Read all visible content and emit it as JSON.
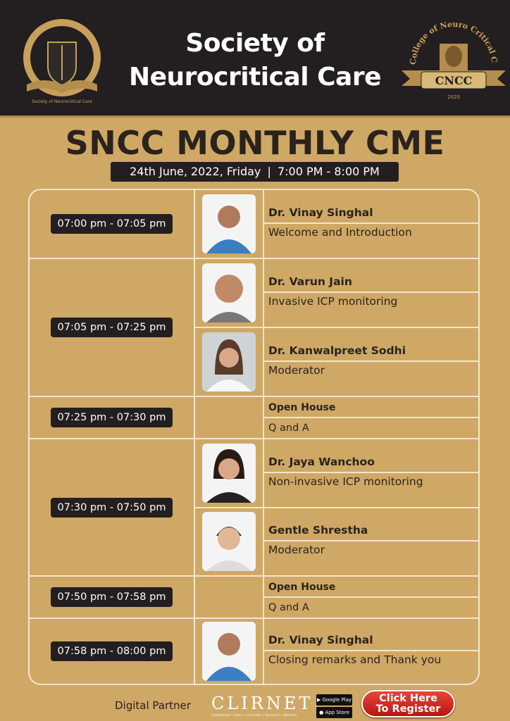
{
  "header": {
    "title_line1": "Society of",
    "title_line2": "Neurocritical Care",
    "left_logo_text": "Society of Neurocritical Care",
    "right_logo_text": "College of Neuro Critical Care",
    "right_logo_abbr": "CNCC",
    "right_logo_year": "2020"
  },
  "event": {
    "title": "SNCC MONTHLY CME",
    "date": "24th June, 2022, Friday",
    "separator": "|",
    "time": "7:00 PM - 8:00 PM"
  },
  "sessions": [
    {
      "time": "07:00 pm - 07:05 pm",
      "items": [
        {
          "name": "Dr. Vinay Singhal",
          "role": "Welcome and Introduction"
        }
      ]
    },
    {
      "time": "07:05 pm - 07:25 pm",
      "items": [
        {
          "name": "Dr. Varun Jain",
          "role": "Invasive ICP monitoring"
        },
        {
          "name": "Dr. Kanwalpreet Sodhi",
          "role": "Moderator"
        }
      ]
    },
    {
      "time": "07:25 pm - 07:30 pm",
      "items": [
        {
          "name": "Open House",
          "role": "Q and A"
        }
      ]
    },
    {
      "time": "07:30 pm - 07:50 pm",
      "items": [
        {
          "name": "Dr. Jaya Wanchoo",
          "role": "Non-invasive ICP monitoring"
        },
        {
          "name": "Gentle Shrestha",
          "role": "Moderator"
        }
      ]
    },
    {
      "time": "07:50 pm - 07:58 pm",
      "items": [
        {
          "name": "Open House",
          "role": "Q and A"
        }
      ]
    },
    {
      "time": "07:58 pm - 08:00 pm",
      "items": [
        {
          "name": "Dr. Vinay Singhal",
          "role": "Closing remarks and Thank you"
        }
      ]
    }
  ],
  "footer": {
    "digital_partner_label": "Digital Partner",
    "partner_logo": "CLIRNET",
    "partner_tagline": "Collaborate • Learn • Innovate • Research • Network",
    "google_play": "Google Play",
    "app_store": "App Store",
    "register_line1": "Click Here",
    "register_line2": "To Register"
  },
  "colors": {
    "background": "#cfa865",
    "header": "#231f20",
    "badge": "#231f20",
    "register": "#d12a20"
  }
}
